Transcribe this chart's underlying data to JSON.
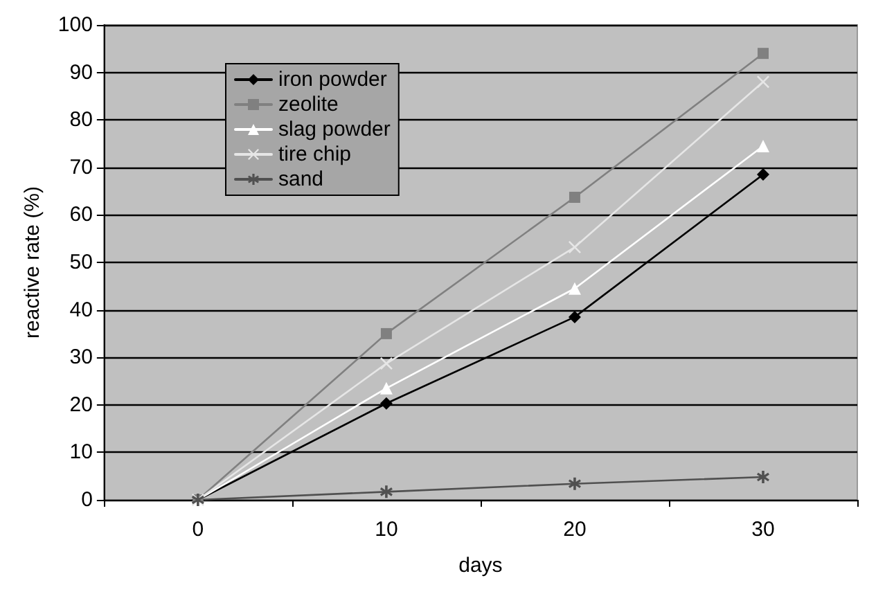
{
  "chart_data": {
    "type": "line",
    "xlabel": "days",
    "ylabel": "reactive rate (%)",
    "categories": [
      "0",
      "10",
      "20",
      "30"
    ],
    "series": [
      {
        "name": "iron powder",
        "color": "#000000",
        "marker": "diamond",
        "values": [
          0,
          20.3,
          38.5,
          68.5
        ]
      },
      {
        "name": "zeolite",
        "color": "#808080",
        "marker": "square",
        "values": [
          0,
          35,
          63.7,
          94
        ]
      },
      {
        "name": "slag powder",
        "color": "#ffffff",
        "marker": "triangle",
        "values": [
          0,
          23.5,
          44.5,
          74.5
        ]
      },
      {
        "name": "tire chip",
        "color": "#e6e6e6",
        "marker": "cross",
        "values": [
          0,
          28.7,
          53.2,
          88
        ]
      },
      {
        "name": "sand",
        "color": "#505050",
        "marker": "star",
        "values": [
          0,
          1.7,
          3.4,
          4.8
        ]
      }
    ],
    "ylim": [
      0,
      100
    ],
    "yticks": [
      0,
      10,
      20,
      30,
      40,
      50,
      60,
      70,
      80,
      90,
      100
    ],
    "grid": "y",
    "legend": "top left",
    "line_style": "solid"
  }
}
